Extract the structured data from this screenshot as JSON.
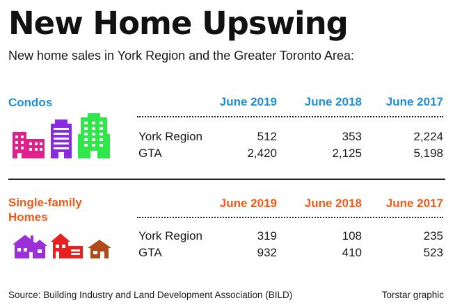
{
  "title": "New Home Upswing",
  "subtitle": "New home sales in York Region and the Greater Toronto Area:",
  "colors": {
    "condos_heading": "#1e8fd6",
    "single_family_heading": "#f05a18",
    "condo_icon_1": "#e0208c",
    "condo_icon_2": "#8a2be2",
    "condo_icon_3": "#2ee84a",
    "house_icon_1": "#9b30d9",
    "house_icon_2": "#e82020",
    "house_icon_3": "#b04a16"
  },
  "icons": {
    "condos": [
      "building-icon",
      "building-icon",
      "building-icon"
    ],
    "single_family": [
      "house-icon",
      "house-icon",
      "house-icon"
    ]
  },
  "footer": {
    "source": "Source: Building Industry and Land Development Association (BILD)",
    "credit": "Torstar graphic"
  },
  "chart_data": {
    "type": "table",
    "title": "New Home Upswing",
    "subtitle": "New home sales in York Region and the Greater Toronto Area:",
    "tables": [
      {
        "heading": "Condos",
        "columns": [
          "June 2019",
          "June 2018",
          "June 2017"
        ],
        "rows": [
          {
            "label": "York Region",
            "values": [
              "512",
              "353",
              "2,224"
            ]
          },
          {
            "label": "GTA",
            "values": [
              "2,420",
              "2,125",
              "5,198"
            ]
          }
        ]
      },
      {
        "heading": "Single-family Homes",
        "heading_lines": [
          "Single-family",
          "Homes"
        ],
        "columns": [
          "June 2019",
          "June 2018",
          "June 2017"
        ],
        "rows": [
          {
            "label": "York Region",
            "values": [
              "319",
              "108",
              "235"
            ]
          },
          {
            "label": "GTA",
            "values": [
              "932",
              "410",
              "523"
            ]
          }
        ]
      }
    ]
  }
}
